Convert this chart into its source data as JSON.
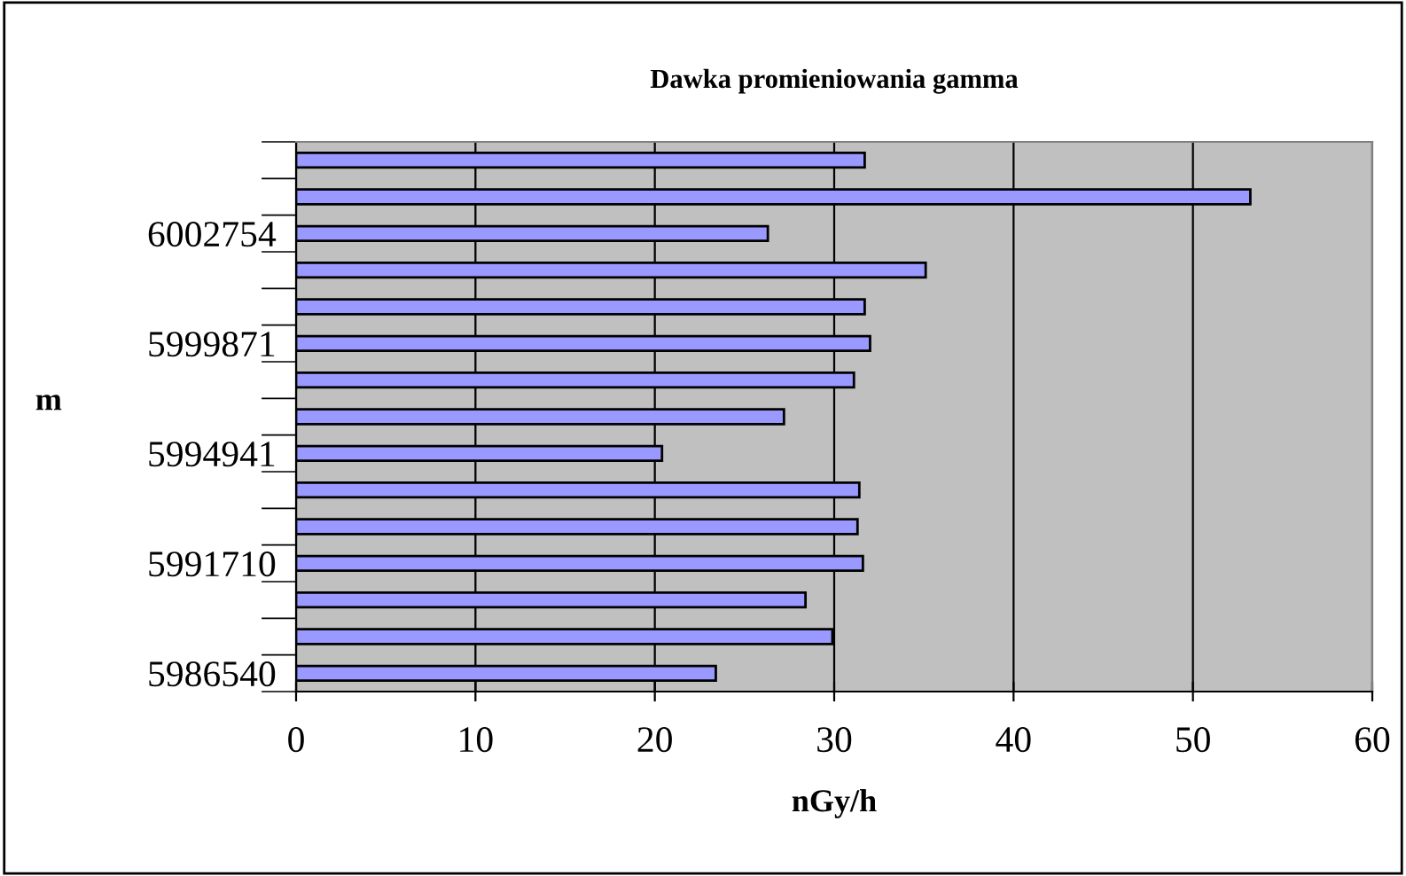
{
  "chart_data": {
    "type": "bar",
    "orientation": "horizontal",
    "title": "Dawka promieniowania gamma",
    "xlabel": "nGy/h",
    "ylabel": "m",
    "categories": [
      null,
      null,
      "6002754",
      null,
      null,
      "5999871",
      null,
      null,
      "5994941",
      null,
      null,
      "5991710",
      null,
      null,
      "5986540"
    ],
    "series": [
      {
        "color": "#9999ff",
        "values": [
          31.7,
          53.2,
          26.3,
          35.1,
          31.7,
          32.0,
          31.1,
          27.2,
          20.4,
          31.4,
          31.3,
          31.6,
          28.4,
          29.9,
          23.4
        ]
      }
    ],
    "xlim": [
      0,
      60
    ],
    "xticks": [
      0,
      10,
      20,
      30,
      40,
      50,
      60
    ],
    "grid": "x",
    "legend": false
  }
}
